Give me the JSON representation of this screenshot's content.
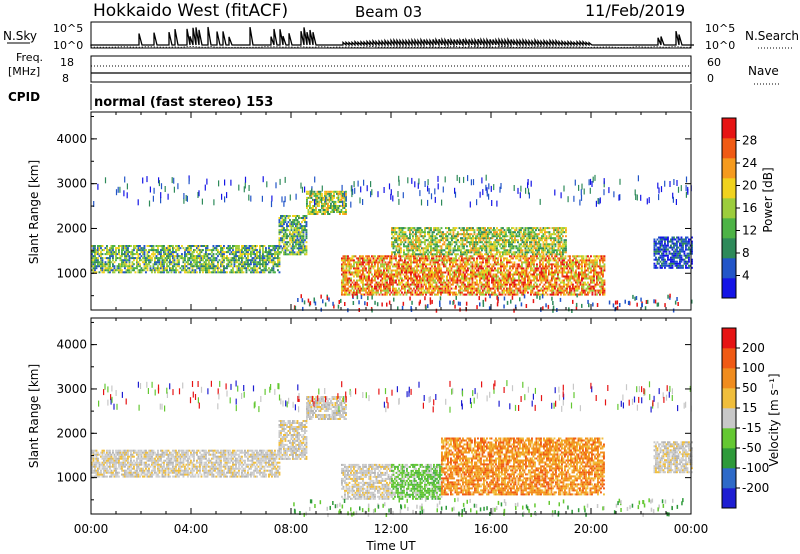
{
  "header": {
    "station": "Hokkaido West (fitACF)",
    "beam": "Beam 03",
    "date": "11/Feb/2019"
  },
  "top_panels": {
    "nsky_label": "N.Sky",
    "nsky_ticks": [
      "10^5",
      "10^0"
    ],
    "nsearch_label": "N.Search",
    "nsearch_ticks": [
      "10^5",
      "10^0"
    ],
    "freq_label": "Freq.",
    "freq_unit": "[MHz]",
    "freq_ticks": [
      "18",
      "8"
    ],
    "nave_label": "Nave",
    "nave_ticks": [
      "60",
      "0"
    ],
    "cpid_label": "CPID",
    "cpid_value": "normal (fast stereo) 153"
  },
  "chart_data": [
    {
      "type": "heatmap",
      "name": "power",
      "ylabel": "Slant Range [km]",
      "yticks": [
        "4000",
        "3000",
        "2000",
        "1000"
      ],
      "ytick_values": [
        4000,
        3000,
        2000,
        1000
      ],
      "ylim": [
        180,
        4600
      ],
      "xlim": [
        0,
        24
      ],
      "colorbar": {
        "label": "Power [dB]",
        "ticks": [
          "28",
          "24",
          "20",
          "16",
          "12",
          "8",
          "4"
        ],
        "colors": [
          "#1414e6",
          "#2255c8",
          "#2e8a5a",
          "#4db346",
          "#9ccd3c",
          "#f0d21e",
          "#f59a1e",
          "#f05a14",
          "#e61414"
        ]
      },
      "echo_regions": [
        {
          "t0": 0.0,
          "t1": 7.5,
          "r0": 1000,
          "r1": 1600,
          "level": "low-mid"
        },
        {
          "t0": 7.5,
          "t1": 8.6,
          "r0": 1400,
          "r1": 2300,
          "level": "low-mid"
        },
        {
          "t0": 8.6,
          "t1": 10.2,
          "r0": 2300,
          "r1": 2800,
          "level": "mid"
        },
        {
          "t0": 10.0,
          "t1": 20.5,
          "r0": 500,
          "r1": 1400,
          "level": "high"
        },
        {
          "t0": 12.0,
          "t1": 19.0,
          "r0": 1400,
          "r1": 2000,
          "level": "mid"
        },
        {
          "t0": 22.5,
          "t1": 24.0,
          "r0": 1100,
          "r1": 1800,
          "level": "low"
        }
      ]
    },
    {
      "type": "heatmap",
      "name": "velocity",
      "ylabel": "Slant Range [km]",
      "yticks": [
        "4000",
        "3000",
        "2000",
        "1000"
      ],
      "ytick_values": [
        4000,
        3000,
        2000,
        1000
      ],
      "ylim": [
        180,
        4600
      ],
      "xlim": [
        0,
        24
      ],
      "xticks": [
        "00:00",
        "04:00",
        "08:00",
        "12:00",
        "16:00",
        "20:00",
        "00:00"
      ],
      "xtick_values": [
        0,
        4,
        8,
        12,
        16,
        20,
        24
      ],
      "xlabel": "Time UT",
      "colorbar": {
        "label": "Velocity [m s⁻¹]",
        "ticks": [
          "200",
          "100",
          "50",
          "15",
          "-15",
          "-50",
          "-100",
          "-200"
        ],
        "colors": [
          "#1e1ed2",
          "#2e6ac8",
          "#2e9a3a",
          "#64c832",
          "#c8c8c8",
          "#f0be3c",
          "#f08c1e",
          "#f05a14",
          "#e61414"
        ]
      },
      "echo_regions": [
        {
          "t0": 0.0,
          "t1": 7.5,
          "r0": 1000,
          "r1": 1600,
          "level": "gray"
        },
        {
          "t0": 7.5,
          "t1": 8.6,
          "r0": 1400,
          "r1": 2300,
          "level": "gray"
        },
        {
          "t0": 8.6,
          "t1": 10.2,
          "r0": 2300,
          "r1": 2800,
          "level": "gray"
        },
        {
          "t0": 10.0,
          "t1": 12.0,
          "r0": 500,
          "r1": 1300,
          "level": "gray"
        },
        {
          "t0": 12.0,
          "t1": 14.0,
          "r0": 500,
          "r1": 1300,
          "level": "green"
        },
        {
          "t0": 14.0,
          "t1": 20.5,
          "r0": 600,
          "r1": 1900,
          "level": "orange"
        },
        {
          "t0": 22.5,
          "t1": 24.0,
          "r0": 1100,
          "r1": 1800,
          "level": "gray"
        }
      ]
    }
  ]
}
